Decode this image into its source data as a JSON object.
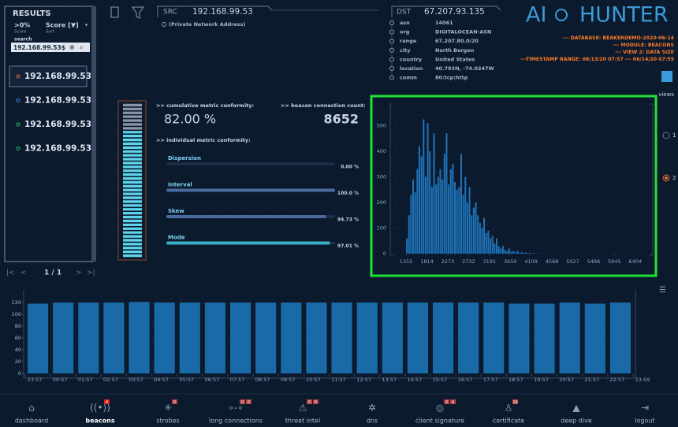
{
  "sidebar": {
    "title": "RESULTS",
    "filter": {
      "value": ">0%",
      "label": "Score"
    },
    "sort": {
      "value": "Score [▼]",
      "label": "Sort"
    },
    "search_label": "search",
    "search_value": "192.168.99.53$",
    "results": [
      "192.168.99.53",
      "192.168.99.53",
      "192.168.99.53",
      "192.168.99.53"
    ],
    "pagination": "1 / 1"
  },
  "src": {
    "label": "SRC",
    "ip": "192.168.99.53",
    "note": "(Private Network Address)"
  },
  "dst": {
    "label": "DST",
    "ip": "67.207.93.135",
    "fields": [
      {
        "key": "asn",
        "value": "14061"
      },
      {
        "key": "org",
        "value": "DIGITALOCEAN-ASN"
      },
      {
        "key": "range",
        "value": "67.207.80.0/20"
      },
      {
        "key": "city",
        "value": "North Bergen"
      },
      {
        "key": "country",
        "value": "United States"
      },
      {
        "key": "location",
        "value": "40.793N, -74.0247W"
      },
      {
        "key": "comm",
        "value": "80:tcp:http"
      }
    ]
  },
  "logo": {
    "left": "AI",
    "right": "HUNTER"
  },
  "info": [
    "--- DATABASE: BEAKERDEMO-2020-06-14",
    "--- MODULE: BEACONS",
    "--- VIEW 2: DATA SIZE",
    "---TIMESTAMP RANGE: 06/13/20 07:57 --- 06/14/20 07:59"
  ],
  "views": {
    "label": "views",
    "options": [
      "1",
      "2"
    ]
  },
  "metrics": {
    "cumulative": {
      "label": ">> cumulative metric conformity:",
      "value": 82,
      "value_label": "82.00 %"
    },
    "count": {
      "label": ">> beacon connection count:",
      "value": 8652
    },
    "individual_label": ">> individual metric conformity:",
    "individual": [
      {
        "name": "Dispersion",
        "value": 0,
        "value_label": "0.00 %"
      },
      {
        "name": "Interval",
        "value": 100,
        "value_label": "100.0 %"
      },
      {
        "name": "Skew",
        "value": 94.73,
        "value_label": "94.73 %"
      },
      {
        "name": "Mode",
        "value": 97.01,
        "value_label": "97.01 %"
      }
    ]
  },
  "nav": [
    {
      "label": "dashboard"
    },
    {
      "label": "beacons",
      "badges": [
        "4"
      ]
    },
    {
      "label": "strobes",
      "badges": [
        "0"
      ]
    },
    {
      "label": "long connections",
      "badges": [
        "0",
        "0"
      ]
    },
    {
      "label": "threat intel",
      "badges": [
        "0",
        "0"
      ]
    },
    {
      "label": "dns"
    },
    {
      "label": "client signature",
      "badges": [
        "3",
        "4"
      ]
    },
    {
      "label": "certificate",
      "badges": [
        "10"
      ]
    },
    {
      "label": "deep dive"
    },
    {
      "label": "logout"
    }
  ],
  "chart_data": [
    {
      "type": "histogram",
      "color": "#1f72b8",
      "bins": [
        1355,
        1401,
        1447,
        1493,
        1539,
        1585,
        1631,
        1677,
        1723,
        1769,
        1815,
        1861,
        1907,
        1953,
        1999,
        2045,
        2091,
        2137,
        2183,
        2229,
        2275,
        2321,
        2367,
        2413,
        2459,
        2505,
        2551,
        2597,
        2643,
        2689,
        2735,
        2781,
        2827,
        2873,
        2919,
        2965,
        3011,
        3057,
        3103,
        3149,
        3195,
        3241,
        3287,
        3333,
        3379,
        3425,
        3471,
        3517,
        3563,
        3609,
        3655,
        3701,
        3747,
        3793,
        3839,
        3885,
        3931,
        3977,
        4023,
        4069,
        4115,
        4161,
        4207,
        4253,
        4299
      ],
      "values": [
        60,
        150,
        230,
        290,
        240,
        330,
        420,
        380,
        525,
        300,
        510,
        400,
        260,
        470,
        270,
        300,
        330,
        290,
        390,
        470,
        270,
        330,
        350,
        280,
        250,
        260,
        390,
        230,
        300,
        200,
        260,
        150,
        180,
        200,
        150,
        120,
        100,
        140,
        80,
        90,
        60,
        70,
        40,
        60,
        30,
        20,
        30,
        15,
        10,
        20,
        8,
        10,
        5,
        12,
        4,
        6,
        3,
        5,
        2,
        4,
        0,
        3,
        0,
        2
      ],
      "xlim": [
        1180,
        6650
      ],
      "xticks": [
        1355,
        1814,
        2273,
        2732,
        3191,
        3650,
        4109,
        4568,
        5027,
        5486,
        5945,
        6404
      ],
      "ylim": [
        0,
        560
      ],
      "yticks": [
        0,
        100,
        200,
        300,
        400,
        500
      ]
    },
    {
      "type": "bar",
      "color": "#1a6aa8",
      "values": [
        118,
        120,
        120,
        120,
        121,
        120,
        120,
        120,
        120,
        120,
        120,
        120,
        120,
        120,
        120,
        120,
        120,
        120,
        120,
        118,
        118,
        120,
        118,
        120
      ],
      "xlim": [
        0,
        24
      ],
      "xticks": [
        {
          "value": 0,
          "label": "23:57"
        },
        {
          "value": 1,
          "label": "00:57"
        },
        {
          "value": 2,
          "label": "01:57"
        },
        {
          "value": 3,
          "label": "02:57"
        },
        {
          "value": 4,
          "label": "03:57"
        },
        {
          "value": 5,
          "label": "04:57"
        },
        {
          "value": 6,
          "label": "05:57"
        },
        {
          "value": 7,
          "label": "06:57"
        },
        {
          "value": 8,
          "label": "07:57"
        },
        {
          "value": 9,
          "label": "08:57"
        },
        {
          "value": 10,
          "label": "09:57"
        },
        {
          "value": 11,
          "label": "10:57"
        },
        {
          "value": 12,
          "label": "11:57"
        },
        {
          "value": 13,
          "label": "12:57"
        },
        {
          "value": 14,
          "label": "13:57"
        },
        {
          "value": 15,
          "label": "14:57"
        },
        {
          "value": 16,
          "label": "15:57"
        },
        {
          "value": 17,
          "label": "16:57"
        },
        {
          "value": 18,
          "label": "17:57"
        },
        {
          "value": 19,
          "label": "18:57"
        },
        {
          "value": 20,
          "label": "19:57"
        },
        {
          "value": 21,
          "label": "20:57"
        },
        {
          "value": 22,
          "label": "21:57"
        },
        {
          "value": 23,
          "label": "22:57"
        },
        {
          "value": 24,
          "label": "23:59"
        }
      ],
      "ylim": [
        0,
        132
      ],
      "yticks": [
        0,
        20,
        40,
        60,
        80,
        100,
        120
      ]
    }
  ]
}
